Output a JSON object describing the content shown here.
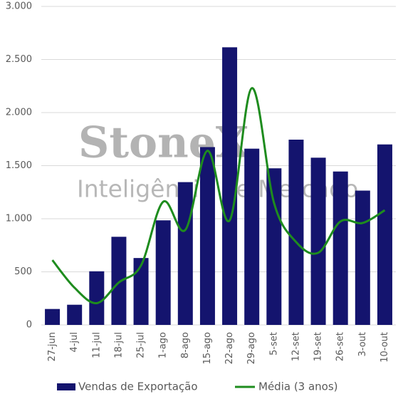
{
  "chart_data": {
    "type": "bar",
    "watermark": {
      "brand": "StoneX",
      "tagline": "Inteligência de Mercado"
    },
    "categories": [
      "27-jun",
      "4-jul",
      "11-jul",
      "18-jul",
      "25-jul",
      "1-ago",
      "8-ago",
      "15-ago",
      "22-ago",
      "29-ago",
      "5-set",
      "12-set",
      "19-set",
      "26-set",
      "3-out",
      "10-out"
    ],
    "series": [
      {
        "name": "Vendas de Exportação",
        "type": "bar",
        "color": "#14146e",
        "values": [
          150,
          190,
          505,
          830,
          630,
          985,
          1345,
          1675,
          2615,
          1660,
          1475,
          1745,
          1575,
          1445,
          1265,
          1700
        ]
      },
      {
        "name": "Média (3 anos)",
        "type": "line",
        "color": "#1e8c1e",
        "values": [
          610,
          350,
          205,
          400,
          560,
          1160,
          895,
          1640,
          985,
          2230,
          1150,
          780,
          680,
          975,
          960,
          1080
        ]
      }
    ],
    "ylim": [
      0,
      3000
    ],
    "yticks": [
      0,
      500,
      {
        "value": 1000,
        "label": "1.000"
      },
      {
        "value": 1500,
        "label": "1.500"
      },
      {
        "value": 2000,
        "label": "2.000"
      },
      {
        "value": 2500,
        "label": "2.500"
      },
      {
        "value": 3000,
        "label": "3.000"
      }
    ],
    "grid": true,
    "legend": "bottom"
  }
}
